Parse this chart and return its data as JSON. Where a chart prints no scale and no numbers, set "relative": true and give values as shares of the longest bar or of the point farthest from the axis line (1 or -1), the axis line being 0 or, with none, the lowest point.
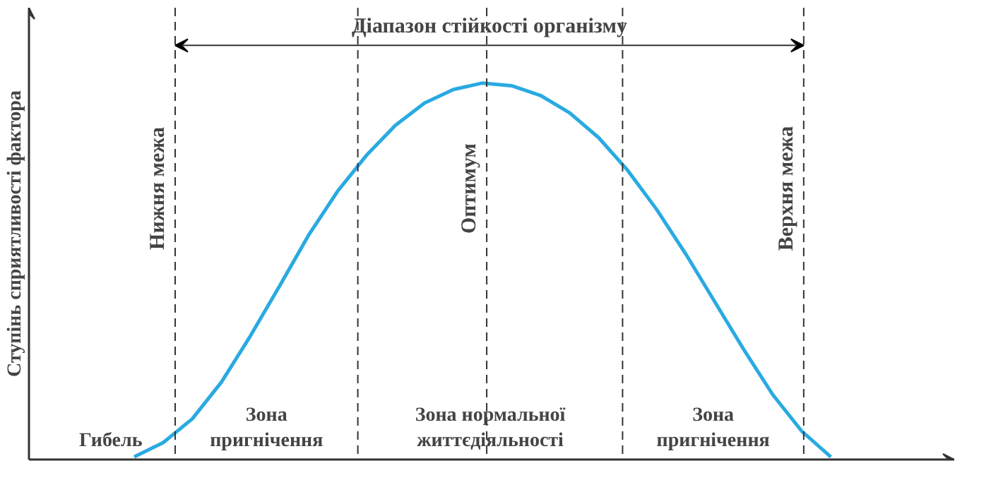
{
  "chart_data": {
    "type": "line",
    "relative": true,
    "title": "Діапазон стійкості організму",
    "ylabel": "Ступінь сприятливості фактора",
    "marker": "none",
    "line_style": "solid",
    "categories": [
      null,
      null,
      null,
      null,
      null,
      null,
      null,
      null,
      null,
      null,
      null,
      null,
      null,
      null,
      null,
      null,
      null,
      null,
      null,
      null,
      null,
      null,
      null,
      null,
      null
    ],
    "series": [
      {
        "color": "#29aae1",
        "values": [
          0.007,
          0.045,
          0.108,
          0.205,
          0.328,
          0.46,
          0.595,
          0.712,
          0.808,
          0.888,
          0.947,
          0.983,
          1,
          0.993,
          0.967,
          0.921,
          0.855,
          0.768,
          0.664,
          0.546,
          0.419,
          0.292,
          0.172,
          0.075,
          0.007
        ]
      }
    ],
    "annotations": [
      "Нижня межа",
      "Оптимум",
      "Верхня межа",
      "Гибель",
      "Зона\nпригнічення",
      "Зона нормальної\nжиттєдіяльності",
      "Зона\nпригнічення"
    ]
  }
}
